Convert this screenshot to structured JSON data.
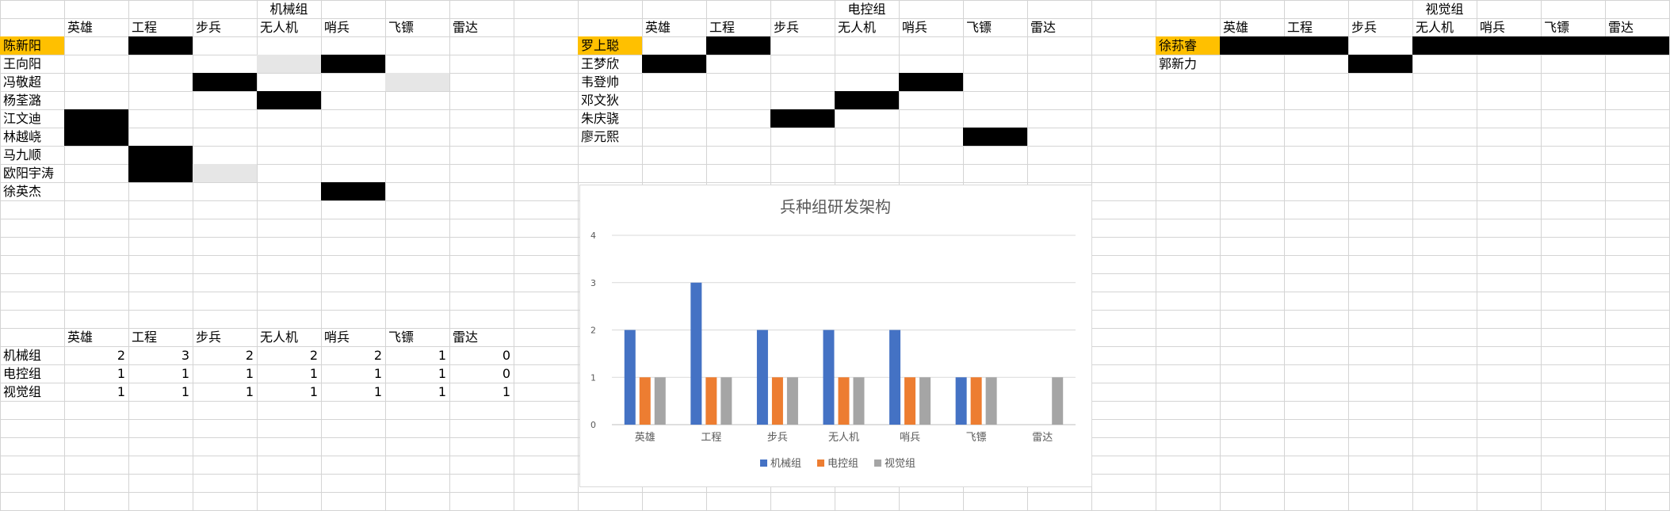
{
  "columns": [
    "英雄",
    "工程",
    "步兵",
    "无人机",
    "哨兵",
    "飞镖",
    "雷达"
  ],
  "groups": [
    {
      "title": "机械组",
      "leader": "陈新阳",
      "members": [
        "陈新阳",
        "王向阳",
        "冯敬超",
        "杨荃潞",
        "江文迪",
        "林越峣",
        "马九顺",
        "欧阳宇涛",
        "徐英杰"
      ]
    },
    {
      "title": "电控组",
      "leader": "罗上聪",
      "members": [
        "罗上聪",
        "王梦欣",
        "韦登帅",
        "邓文狄",
        "朱庆骁",
        "廖元熙"
      ]
    },
    {
      "title": "视觉组",
      "leader": "徐荪睿",
      "members": [
        "徐荪睿",
        "郭新力"
      ]
    }
  ],
  "summary": {
    "columns": [
      "英雄",
      "工程",
      "步兵",
      "无人机",
      "哨兵",
      "飞镖",
      "雷达"
    ],
    "rows": [
      {
        "label": "机械组",
        "values": [
          2,
          3,
          2,
          2,
          2,
          1,
          0
        ]
      },
      {
        "label": "电控组",
        "values": [
          1,
          1,
          1,
          1,
          1,
          1,
          0
        ]
      },
      {
        "label": "视觉组",
        "values": [
          1,
          1,
          1,
          1,
          1,
          1,
          1
        ]
      }
    ]
  },
  "chart_data": {
    "type": "bar",
    "title": "兵种组研发架构",
    "categories": [
      "英雄",
      "工程",
      "步兵",
      "无人机",
      "哨兵",
      "飞镖",
      "雷达"
    ],
    "series": [
      {
        "name": "机械组",
        "color": "#4472c4",
        "values": [
          2,
          3,
          2,
          2,
          2,
          1,
          0
        ]
      },
      {
        "name": "电控组",
        "color": "#ed7d31",
        "values": [
          1,
          1,
          1,
          1,
          1,
          1,
          0
        ]
      },
      {
        "name": "视觉组",
        "color": "#a5a5a5",
        "values": [
          1,
          1,
          1,
          1,
          1,
          1,
          1
        ]
      }
    ],
    "ylim": [
      0,
      4
    ],
    "yticks": [
      0,
      1,
      2,
      3,
      4
    ],
    "grid": true,
    "legend": "bottom"
  }
}
